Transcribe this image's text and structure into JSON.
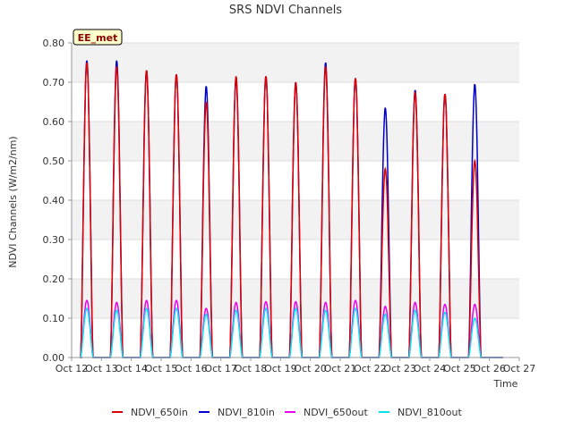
{
  "chart_data": {
    "type": "line",
    "title": "SRS NDVI Channels",
    "xlabel": "Time",
    "ylabel": "NDVI Channels (W/m2/nm)",
    "badge": "EE_met",
    "xlim": [
      12,
      27
    ],
    "ylim": [
      0,
      0.8
    ],
    "x_ticks": [
      {
        "value": 12,
        "label": "Oct 12"
      },
      {
        "value": 13,
        "label": "Oct 13"
      },
      {
        "value": 14,
        "label": "Oct 14"
      },
      {
        "value": 15,
        "label": "Oct 15"
      },
      {
        "value": 16,
        "label": "Oct 16"
      },
      {
        "value": 17,
        "label": "Oct 17"
      },
      {
        "value": 18,
        "label": "Oct 18"
      },
      {
        "value": 19,
        "label": "Oct 19"
      },
      {
        "value": 20,
        "label": "Oct 20"
      },
      {
        "value": 21,
        "label": "Oct 21"
      },
      {
        "value": 22,
        "label": "Oct 22"
      },
      {
        "value": 23,
        "label": "Oct 23"
      },
      {
        "value": 24,
        "label": "Oct 24"
      },
      {
        "value": 25,
        "label": "Oct 25"
      },
      {
        "value": 26,
        "label": "Oct 26"
      },
      {
        "value": 27,
        "label": "Oct 27"
      }
    ],
    "y_ticks": [
      {
        "value": 0.0,
        "label": "0.00"
      },
      {
        "value": 0.1,
        "label": "0.10"
      },
      {
        "value": 0.2,
        "label": "0.20"
      },
      {
        "value": 0.3,
        "label": "0.30"
      },
      {
        "value": 0.4,
        "label": "0.40"
      },
      {
        "value": 0.5,
        "label": "0.50"
      },
      {
        "value": 0.6,
        "label": "0.60"
      },
      {
        "value": 0.7,
        "label": "0.70"
      },
      {
        "value": 0.8,
        "label": "0.80"
      }
    ],
    "days": [
      12.75,
      13.75,
      14.75,
      15.75,
      16.75,
      17.75,
      18.75,
      19.75,
      20.75,
      21.75,
      22.75,
      23.75,
      24.75,
      25.75
    ],
    "day_window": [
      0.3,
      0.72
    ],
    "x_start": 12.35,
    "x_end": 26.45,
    "series": [
      {
        "name": "NDVI_650in",
        "color": "#dd0000",
        "peaks": [
          0.75,
          0.74,
          0.73,
          0.72,
          0.65,
          0.715,
          0.715,
          0.7,
          0.74,
          0.71,
          0.48,
          0.675,
          0.67,
          0.5
        ]
      },
      {
        "name": "NDVI_810in",
        "color": "#0000cc",
        "peaks": [
          0.755,
          0.755,
          0.73,
          0.72,
          0.69,
          0.71,
          0.715,
          0.7,
          0.75,
          0.71,
          0.635,
          0.68,
          0.67,
          0.695
        ]
      },
      {
        "name": "NDVI_650out",
        "color": "#ee00ee",
        "peaks": [
          0.145,
          0.14,
          0.145,
          0.145,
          0.125,
          0.14,
          0.142,
          0.142,
          0.14,
          0.145,
          0.13,
          0.14,
          0.135,
          0.135
        ]
      },
      {
        "name": "NDVI_810out",
        "color": "#00e5ee",
        "peaks": [
          0.125,
          0.12,
          0.125,
          0.125,
          0.11,
          0.12,
          0.125,
          0.125,
          0.12,
          0.125,
          0.11,
          0.12,
          0.115,
          0.1
        ]
      }
    ]
  }
}
